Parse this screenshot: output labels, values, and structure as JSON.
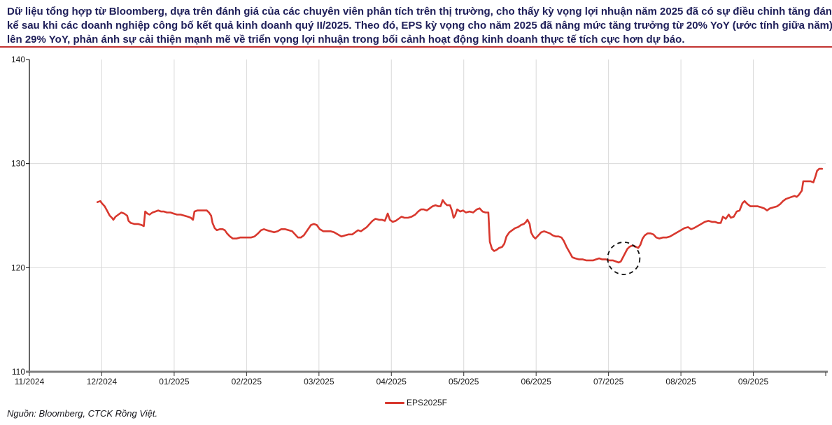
{
  "header": {
    "lines": [
      "Dữ liệu tổng hợp từ Bloomberg, dựa trên đánh giá của các chuyên viên phân tích trên thị trường, cho thấy kỳ vọng lợi nhuận năm 2025 đã có sự điều chỉnh tăng đáng",
      "kể sau khi các doanh nghiệp công bố kết quả kinh doanh quý II/2025. Theo đó, EPS kỳ vọng cho năm 2025 đã nâng mức tăng trưởng từ 20% YoY (ước tính giữa năm)",
      "lên 29% YoY, phản ánh sự cải thiện mạnh mẽ về triển vọng lợi nhuận trong bối cảnh hoạt động kinh doanh thực tế tích cực hơn dự báo."
    ],
    "text_color": "#20205a",
    "divider_color": "#c23331"
  },
  "chart_data": {
    "type": "line",
    "title": "",
    "xlabel": "",
    "ylabel": "",
    "x_axis": {
      "tick_labels": [
        "11/2024",
        "12/2024",
        "01/2025",
        "02/2025",
        "03/2025",
        "04/2025",
        "05/2025",
        "06/2025",
        "07/2025",
        "08/2025",
        "09/2025"
      ],
      "unit": "months since 11/2024 gridline",
      "range": [
        0,
        11
      ]
    },
    "y_axis": {
      "tick_labels": [
        "110",
        "120",
        "130",
        "140"
      ],
      "ticks": [
        110,
        120,
        130,
        140
      ],
      "range": [
        110,
        140
      ]
    },
    "gridlines": {
      "vertical_at_months": [
        1,
        2,
        3,
        4,
        5,
        6,
        7,
        8,
        9,
        10
      ],
      "horizontal_at_values": [
        120,
        130
      ]
    },
    "legend": {
      "label": "EPS2025F",
      "position": "bottom-center"
    },
    "annotation": {
      "type": "dashed-circle",
      "t": 8.21,
      "value": 120.9,
      "radius_px": 23
    },
    "series": [
      {
        "name": "EPS2025F",
        "color": "#d8382e",
        "points": [
          [
            0.94,
            126.3
          ],
          [
            0.98,
            126.4
          ],
          [
            1.0,
            126.2
          ],
          [
            1.04,
            125.9
          ],
          [
            1.08,
            125.4
          ],
          [
            1.11,
            125.0
          ],
          [
            1.14,
            124.8
          ],
          [
            1.16,
            124.6
          ],
          [
            1.19,
            124.9
          ],
          [
            1.23,
            125.1
          ],
          [
            1.27,
            125.3
          ],
          [
            1.31,
            125.2
          ],
          [
            1.35,
            125.0
          ],
          [
            1.37,
            124.5
          ],
          [
            1.4,
            124.3
          ],
          [
            1.45,
            124.2
          ],
          [
            1.5,
            124.2
          ],
          [
            1.55,
            124.1
          ],
          [
            1.58,
            124.0
          ],
          [
            1.6,
            125.4
          ],
          [
            1.63,
            125.2
          ],
          [
            1.66,
            125.1
          ],
          [
            1.7,
            125.3
          ],
          [
            1.74,
            125.4
          ],
          [
            1.78,
            125.5
          ],
          [
            1.82,
            125.4
          ],
          [
            1.86,
            125.4
          ],
          [
            1.9,
            125.3
          ],
          [
            1.95,
            125.3
          ],
          [
            1.99,
            125.2
          ],
          [
            2.04,
            125.1
          ],
          [
            2.09,
            125.1
          ],
          [
            2.14,
            125.0
          ],
          [
            2.19,
            124.9
          ],
          [
            2.23,
            124.8
          ],
          [
            2.26,
            124.6
          ],
          [
            2.28,
            125.4
          ],
          [
            2.32,
            125.5
          ],
          [
            2.37,
            125.5
          ],
          [
            2.42,
            125.5
          ],
          [
            2.45,
            125.5
          ],
          [
            2.48,
            125.3
          ],
          [
            2.51,
            125.0
          ],
          [
            2.53,
            124.3
          ],
          [
            2.56,
            123.8
          ],
          [
            2.59,
            123.6
          ],
          [
            2.63,
            123.7
          ],
          [
            2.67,
            123.7
          ],
          [
            2.7,
            123.6
          ],
          [
            2.73,
            123.3
          ],
          [
            2.77,
            123.0
          ],
          [
            2.81,
            122.8
          ],
          [
            2.86,
            122.8
          ],
          [
            2.91,
            122.9
          ],
          [
            2.96,
            122.9
          ],
          [
            3.01,
            122.9
          ],
          [
            3.06,
            122.9
          ],
          [
            3.11,
            123.0
          ],
          [
            3.16,
            123.3
          ],
          [
            3.2,
            123.6
          ],
          [
            3.24,
            123.7
          ],
          [
            3.28,
            123.6
          ],
          [
            3.33,
            123.5
          ],
          [
            3.38,
            123.4
          ],
          [
            3.43,
            123.5
          ],
          [
            3.48,
            123.7
          ],
          [
            3.53,
            123.7
          ],
          [
            3.58,
            123.6
          ],
          [
            3.63,
            123.5
          ],
          [
            3.67,
            123.2
          ],
          [
            3.71,
            122.9
          ],
          [
            3.75,
            122.9
          ],
          [
            3.79,
            123.1
          ],
          [
            3.84,
            123.6
          ],
          [
            3.89,
            124.1
          ],
          [
            3.93,
            124.2
          ],
          [
            3.97,
            124.1
          ],
          [
            4.01,
            123.7
          ],
          [
            4.06,
            123.5
          ],
          [
            4.11,
            123.5
          ],
          [
            4.16,
            123.5
          ],
          [
            4.21,
            123.4
          ],
          [
            4.26,
            123.2
          ],
          [
            4.31,
            123.0
          ],
          [
            4.36,
            123.1
          ],
          [
            4.41,
            123.2
          ],
          [
            4.46,
            123.2
          ],
          [
            4.5,
            123.4
          ],
          [
            4.54,
            123.6
          ],
          [
            4.58,
            123.5
          ],
          [
            4.62,
            123.7
          ],
          [
            4.66,
            123.9
          ],
          [
            4.7,
            124.2
          ],
          [
            4.74,
            124.5
          ],
          [
            4.78,
            124.7
          ],
          [
            4.83,
            124.6
          ],
          [
            4.87,
            124.6
          ],
          [
            4.91,
            124.5
          ],
          [
            4.95,
            125.2
          ],
          [
            4.98,
            124.6
          ],
          [
            5.02,
            124.4
          ],
          [
            5.06,
            124.5
          ],
          [
            5.1,
            124.7
          ],
          [
            5.14,
            124.9
          ],
          [
            5.18,
            124.8
          ],
          [
            5.23,
            124.8
          ],
          [
            5.28,
            124.9
          ],
          [
            5.33,
            125.1
          ],
          [
            5.37,
            125.4
          ],
          [
            5.41,
            125.6
          ],
          [
            5.45,
            125.6
          ],
          [
            5.49,
            125.5
          ],
          [
            5.53,
            125.7
          ],
          [
            5.57,
            125.9
          ],
          [
            5.61,
            126.0
          ],
          [
            5.65,
            125.9
          ],
          [
            5.68,
            125.9
          ],
          [
            5.71,
            126.5
          ],
          [
            5.74,
            126.2
          ],
          [
            5.77,
            126.0
          ],
          [
            5.81,
            126.0
          ],
          [
            5.84,
            125.4
          ],
          [
            5.86,
            124.8
          ],
          [
            5.88,
            125.0
          ],
          [
            5.91,
            125.6
          ],
          [
            5.95,
            125.4
          ],
          [
            5.99,
            125.5
          ],
          [
            6.03,
            125.3
          ],
          [
            6.08,
            125.4
          ],
          [
            6.13,
            125.3
          ],
          [
            6.18,
            125.6
          ],
          [
            6.22,
            125.7
          ],
          [
            6.26,
            125.4
          ],
          [
            6.3,
            125.3
          ],
          [
            6.34,
            125.3
          ],
          [
            6.36,
            122.5
          ],
          [
            6.39,
            121.8
          ],
          [
            6.42,
            121.6
          ],
          [
            6.45,
            121.7
          ],
          [
            6.49,
            121.9
          ],
          [
            6.53,
            122.0
          ],
          [
            6.56,
            122.3
          ],
          [
            6.59,
            123.0
          ],
          [
            6.63,
            123.4
          ],
          [
            6.67,
            123.6
          ],
          [
            6.71,
            123.8
          ],
          [
            6.75,
            123.9
          ],
          [
            6.79,
            124.1
          ],
          [
            6.83,
            124.2
          ],
          [
            6.86,
            124.4
          ],
          [
            6.88,
            124.6
          ],
          [
            6.91,
            124.2
          ],
          [
            6.93,
            123.4
          ],
          [
            6.96,
            123.0
          ],
          [
            6.99,
            122.8
          ],
          [
            7.03,
            123.1
          ],
          [
            7.07,
            123.4
          ],
          [
            7.11,
            123.5
          ],
          [
            7.15,
            123.4
          ],
          [
            7.19,
            123.3
          ],
          [
            7.23,
            123.1
          ],
          [
            7.27,
            123.0
          ],
          [
            7.31,
            123.0
          ],
          [
            7.35,
            122.9
          ],
          [
            7.38,
            122.6
          ],
          [
            7.42,
            122.0
          ],
          [
            7.46,
            121.5
          ],
          [
            7.5,
            121.0
          ],
          [
            7.54,
            120.9
          ],
          [
            7.59,
            120.8
          ],
          [
            7.64,
            120.8
          ],
          [
            7.69,
            120.7
          ],
          [
            7.74,
            120.7
          ],
          [
            7.79,
            120.7
          ],
          [
            7.83,
            120.8
          ],
          [
            7.87,
            120.9
          ],
          [
            7.91,
            120.8
          ],
          [
            7.96,
            120.8
          ],
          [
            8.01,
            120.7
          ],
          [
            8.06,
            120.7
          ],
          [
            8.1,
            120.6
          ],
          [
            8.14,
            120.5
          ],
          [
            8.17,
            120.6
          ],
          [
            8.2,
            121.0
          ],
          [
            8.23,
            121.4
          ],
          [
            8.26,
            121.8
          ],
          [
            8.29,
            122.0
          ],
          [
            8.32,
            122.1
          ],
          [
            8.35,
            122.1
          ],
          [
            8.38,
            122.0
          ],
          [
            8.41,
            121.9
          ],
          [
            8.44,
            122.2
          ],
          [
            8.47,
            122.8
          ],
          [
            8.5,
            123.1
          ],
          [
            8.54,
            123.3
          ],
          [
            8.58,
            123.3
          ],
          [
            8.62,
            123.2
          ],
          [
            8.66,
            122.9
          ],
          [
            8.7,
            122.8
          ],
          [
            8.75,
            122.9
          ],
          [
            8.8,
            122.9
          ],
          [
            8.85,
            123.0
          ],
          [
            8.9,
            123.2
          ],
          [
            8.95,
            123.4
          ],
          [
            9.0,
            123.6
          ],
          [
            9.05,
            123.8
          ],
          [
            9.1,
            123.9
          ],
          [
            9.14,
            123.7
          ],
          [
            9.18,
            123.8
          ],
          [
            9.23,
            124.0
          ],
          [
            9.28,
            124.2
          ],
          [
            9.33,
            124.4
          ],
          [
            9.38,
            124.5
          ],
          [
            9.43,
            124.4
          ],
          [
            9.47,
            124.4
          ],
          [
            9.51,
            124.3
          ],
          [
            9.55,
            124.3
          ],
          [
            9.58,
            124.9
          ],
          [
            9.62,
            124.7
          ],
          [
            9.66,
            125.1
          ],
          [
            9.69,
            124.8
          ],
          [
            9.73,
            124.9
          ],
          [
            9.77,
            125.4
          ],
          [
            9.81,
            125.5
          ],
          [
            9.85,
            126.2
          ],
          [
            9.88,
            126.4
          ],
          [
            9.92,
            126.1
          ],
          [
            9.96,
            125.9
          ],
          [
            10.01,
            125.9
          ],
          [
            10.06,
            125.9
          ],
          [
            10.11,
            125.8
          ],
          [
            10.15,
            125.7
          ],
          [
            10.19,
            125.5
          ],
          [
            10.23,
            125.7
          ],
          [
            10.28,
            125.8
          ],
          [
            10.33,
            125.9
          ],
          [
            10.37,
            126.1
          ],
          [
            10.41,
            126.4
          ],
          [
            10.45,
            126.6
          ],
          [
            10.49,
            126.7
          ],
          [
            10.53,
            126.8
          ],
          [
            10.57,
            126.9
          ],
          [
            10.6,
            126.8
          ],
          [
            10.63,
            127.0
          ],
          [
            10.66,
            127.3
          ],
          [
            10.67,
            127.4
          ],
          [
            10.69,
            128.3
          ],
          [
            10.74,
            128.3
          ],
          [
            10.79,
            128.3
          ],
          [
            10.83,
            128.2
          ],
          [
            10.86,
            128.8
          ],
          [
            10.88,
            129.3
          ],
          [
            10.91,
            129.5
          ],
          [
            10.95,
            129.5
          ]
        ]
      }
    ]
  },
  "footer": {
    "source": "Nguồn: Bloomberg, CTCK Rồng Việt."
  }
}
